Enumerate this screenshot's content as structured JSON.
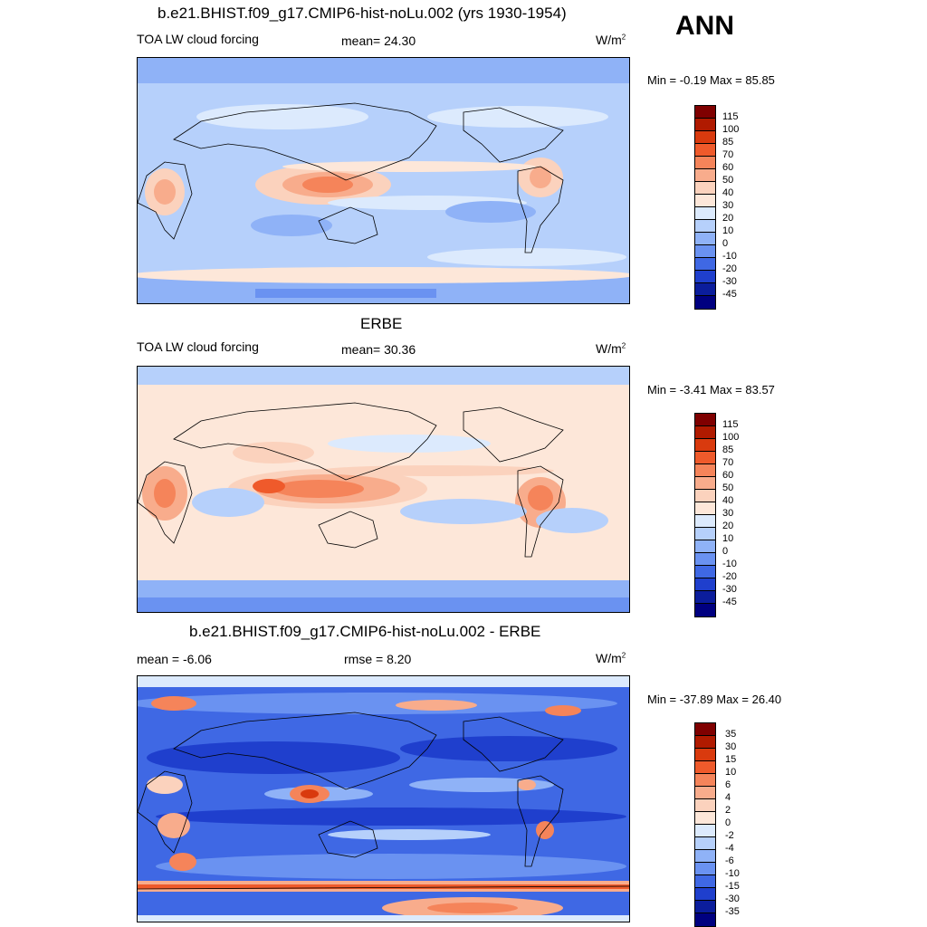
{
  "season": "ANN",
  "units": "W/m",
  "units_sup": "2",
  "panels": [
    {
      "title": "b.e21.BHIST.f09_g17.CMIP6-hist-noLu.002 (yrs 1930-1954)",
      "left_label": "TOA LW cloud forcing",
      "center_label": "mean=  24.30",
      "minmax": "Min =  -0.19 Max =  85.85",
      "colorbar_labels": [
        "115",
        "100",
        "85",
        "70",
        "60",
        "50",
        "40",
        "30",
        "20",
        "10",
        "0",
        "-10",
        "-20",
        "-30",
        "-45"
      ]
    },
    {
      "title": "ERBE",
      "left_label": "TOA LW cloud forcing",
      "center_label": "mean=  30.36",
      "minmax": "Min =  -3.41 Max =  83.57",
      "colorbar_labels": [
        "115",
        "100",
        "85",
        "70",
        "60",
        "50",
        "40",
        "30",
        "20",
        "10",
        "0",
        "-10",
        "-20",
        "-30",
        "-45"
      ]
    },
    {
      "title": "b.e21.BHIST.f09_g17.CMIP6-hist-noLu.002 - ERBE",
      "left_label": "mean =  -6.06",
      "center_label": "rmse =   8.20",
      "minmax": "Min = -37.89 Max =  26.40",
      "colorbar_labels": [
        "35",
        "30",
        "15",
        "10",
        "6",
        "4",
        "2",
        "0",
        "-2",
        "-4",
        "-6",
        "-10",
        "-15",
        "-30",
        "-35"
      ]
    }
  ],
  "colors": {
    "abs_scale": [
      "#7f0000",
      "#b01a00",
      "#d93a0e",
      "#ef5a2b",
      "#f5845a",
      "#f8ac8c",
      "#fbd2bd",
      "#fde7d9",
      "#dceafd",
      "#b6d0fb",
      "#8fb2f7",
      "#6a92f1",
      "#3f68e4",
      "#1f3fcd",
      "#0b1d9c",
      "#000080"
    ],
    "diff_scale": [
      "#7f0000",
      "#b01a00",
      "#d93a0e",
      "#ef5a2b",
      "#f5845a",
      "#f8ac8c",
      "#fbd2bd",
      "#fde7d9",
      "#dceafd",
      "#b6d0fb",
      "#8fb2f7",
      "#6a92f1",
      "#3f68e4",
      "#1f3fcd",
      "#0b1d9c",
      "#000080"
    ],
    "ocean_blue": "#8fb2f7",
    "land_line": "#000000"
  }
}
